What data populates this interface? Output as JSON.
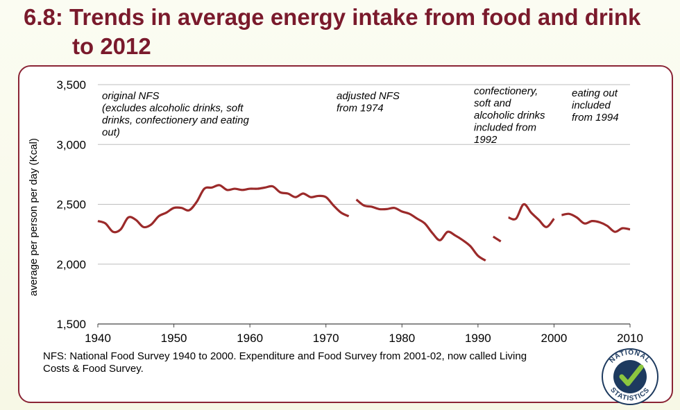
{
  "header": {
    "title_line1": "6.8: Trends in average energy intake from food and drink",
    "title_line2": "to 2012"
  },
  "colors": {
    "title": "#7a1a2c",
    "line": "#9b2a2a",
    "panel_border": "#8a2435"
  },
  "chart_data": {
    "type": "line",
    "title": "Trends in average energy intake from food and drink to 2012",
    "xlabel": "",
    "ylabel": "average per person per day (Kcal)",
    "xlim": [
      1940,
      2010
    ],
    "ylim": [
      1500,
      3500
    ],
    "xticks": [
      "1940",
      "1950",
      "1960",
      "1970",
      "1980",
      "1990",
      "2000",
      "2010"
    ],
    "yticks": [
      "1,500",
      "2,000",
      "2,500",
      "3,000",
      "3,500"
    ],
    "gridlines": true,
    "series": [
      {
        "name": "original NFS",
        "points": [
          [
            1940,
            2360
          ],
          [
            1941,
            2340
          ],
          [
            1942,
            2270
          ],
          [
            1943,
            2290
          ],
          [
            1944,
            2390
          ],
          [
            1945,
            2370
          ],
          [
            1946,
            2310
          ],
          [
            1947,
            2330
          ],
          [
            1948,
            2400
          ],
          [
            1949,
            2430
          ],
          [
            1950,
            2470
          ],
          [
            1951,
            2470
          ],
          [
            1952,
            2450
          ],
          [
            1953,
            2520
          ],
          [
            1954,
            2630
          ],
          [
            1955,
            2640
          ],
          [
            1956,
            2660
          ],
          [
            1957,
            2620
          ],
          [
            1958,
            2630
          ],
          [
            1959,
            2620
          ],
          [
            1960,
            2630
          ],
          [
            1961,
            2630
          ],
          [
            1962,
            2640
          ],
          [
            1963,
            2650
          ],
          [
            1964,
            2600
          ],
          [
            1965,
            2590
          ],
          [
            1966,
            2560
          ],
          [
            1967,
            2590
          ],
          [
            1968,
            2560
          ],
          [
            1969,
            2570
          ],
          [
            1970,
            2560
          ],
          [
            1971,
            2490
          ],
          [
            1972,
            2430
          ],
          [
            1973,
            2400
          ]
        ]
      },
      {
        "name": "adjusted NFS",
        "points": [
          [
            1974,
            2540
          ],
          [
            1975,
            2490
          ],
          [
            1976,
            2480
          ],
          [
            1977,
            2460
          ],
          [
            1978,
            2460
          ],
          [
            1979,
            2470
          ],
          [
            1980,
            2440
          ],
          [
            1981,
            2420
          ],
          [
            1982,
            2380
          ],
          [
            1983,
            2340
          ],
          [
            1984,
            2260
          ],
          [
            1985,
            2200
          ],
          [
            1986,
            2270
          ],
          [
            1987,
            2240
          ],
          [
            1988,
            2200
          ],
          [
            1989,
            2150
          ],
          [
            1990,
            2070
          ],
          [
            1991,
            2030
          ]
        ]
      },
      {
        "name": "confectionery, soft and alcoholic drinks included",
        "points": [
          [
            1992,
            2230
          ],
          [
            1993,
            2190
          ]
        ]
      },
      {
        "name": "eating out included (1994-2000)",
        "points": [
          [
            1994,
            2390
          ],
          [
            1995,
            2380
          ],
          [
            1996,
            2500
          ],
          [
            1997,
            2430
          ],
          [
            1998,
            2370
          ],
          [
            1999,
            2310
          ],
          [
            2000,
            2380
          ]
        ]
      },
      {
        "name": "Living Costs & Food Survey",
        "points": [
          [
            2001,
            2410
          ],
          [
            2002,
            2420
          ],
          [
            2003,
            2390
          ],
          [
            2004,
            2340
          ],
          [
            2005,
            2360
          ],
          [
            2006,
            2350
          ],
          [
            2007,
            2320
          ],
          [
            2008,
            2270
          ],
          [
            2009,
            2300
          ],
          [
            2010,
            2290
          ]
        ]
      }
    ],
    "annotations": [
      {
        "lines": [
          "original NFS",
          "(excludes alcoholic drinks, soft",
          "drinks, confectionery and eating",
          "out)"
        ]
      },
      {
        "lines": [
          "adjusted NFS",
          "from 1974"
        ]
      },
      {
        "lines": [
          "confectionery,",
          "soft and",
          "alcoholic  drinks",
          "included from",
          "1992"
        ]
      },
      {
        "lines": [
          "eating out",
          "included",
          "from 1994"
        ]
      }
    ]
  },
  "footnote": {
    "line1": "NFS: National Food Survey 1940 to 2000. Expenditure and Food Survey from 2001-02, now called Living",
    "line2": "Costs & Food Survey."
  },
  "logo": {
    "text": "NATIONAL STATISTICS"
  }
}
